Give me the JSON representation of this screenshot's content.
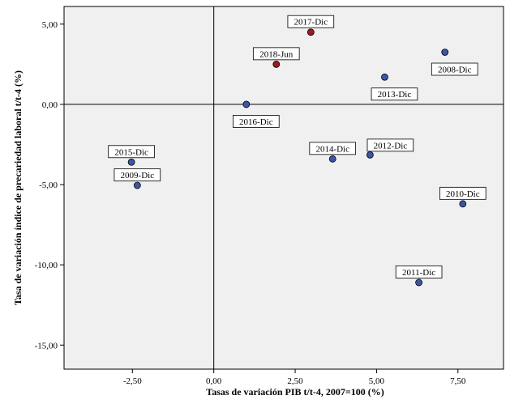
{
  "chart_data": {
    "type": "scatter",
    "title": "",
    "xlabel": "Tasas de variación PIB t/t-4, 2007=100 (%)",
    "ylabel": "Tasa de variación índice de precariedad laboral t/t-4 (%)",
    "xlim": [
      -4.6,
      8.9
    ],
    "ylim": [
      -16.5,
      6.1
    ],
    "xticks": [
      -2.5,
      0.0,
      2.5,
      5.0,
      7.5
    ],
    "yticks": [
      5.0,
      0.0,
      -5.0,
      -10.0,
      -15.0
    ],
    "xtick_labels": [
      "-2,50",
      "0,00",
      "2,50",
      "5,00",
      "7,50"
    ],
    "ytick_labels": [
      "5,00",
      "0,00",
      "-5,00",
      "-10,00",
      "-15,00"
    ],
    "reference_lines": {
      "x": 0.0,
      "y": 0.0
    },
    "colors": {
      "blue": "#3d55a8",
      "red": "#a0191e",
      "plot_bg": "#f0f0f0"
    },
    "points": [
      {
        "label": "2017-Dic",
        "x": 2.98,
        "y": 4.5,
        "color": "red",
        "label_pos": "above"
      },
      {
        "label": "2018-Jun",
        "x": 1.92,
        "y": 2.5,
        "color": "red",
        "label_pos": "above"
      },
      {
        "label": "2008-Dic",
        "x": 7.1,
        "y": 3.25,
        "color": "blue",
        "label_pos": "below"
      },
      {
        "label": "2013-Dic",
        "x": 5.25,
        "y": 1.7,
        "color": "blue",
        "label_pos": "below"
      },
      {
        "label": "2016-Dic",
        "x": 1.0,
        "y": 0.0,
        "color": "blue",
        "label_pos": "below"
      },
      {
        "label": "2014-Dic",
        "x": 3.65,
        "y": -3.4,
        "color": "blue",
        "label_pos": "above"
      },
      {
        "label": "2012-Dic",
        "x": 4.8,
        "y": -3.15,
        "color": "blue",
        "label_pos": "above-right"
      },
      {
        "label": "2015-Dic",
        "x": -2.53,
        "y": -3.6,
        "color": "blue",
        "label_pos": "above"
      },
      {
        "label": "2009-Dic",
        "x": -2.35,
        "y": -5.05,
        "color": "blue",
        "label_pos": "above"
      },
      {
        "label": "2010-Dic",
        "x": 7.65,
        "y": -6.2,
        "color": "blue",
        "label_pos": "above"
      },
      {
        "label": "2011-Dic",
        "x": 6.3,
        "y": -11.1,
        "color": "blue",
        "label_pos": "above"
      }
    ]
  }
}
